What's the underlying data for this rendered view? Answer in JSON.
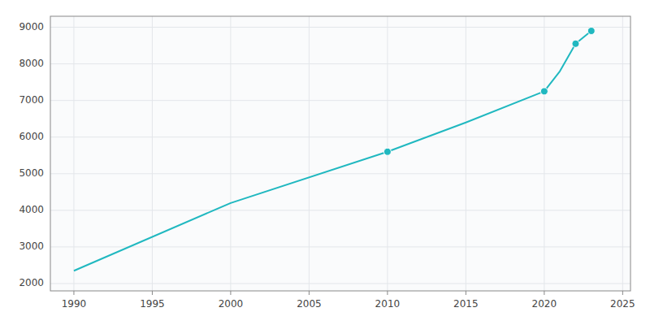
{
  "chart_data": {
    "type": "line",
    "x": [
      1990,
      2000,
      2010,
      2015,
      2020,
      2021,
      2022,
      2023
    ],
    "series": [
      {
        "color": "#20b8c0",
        "values": [
          2350,
          4200,
          5600,
          6400,
          7250,
          7800,
          8550,
          8900
        ]
      },
      {
        "type": "scatter",
        "color": "#20b8c0",
        "marker": "circle",
        "values": [
          null,
          null,
          5600,
          null,
          7250,
          null,
          8550,
          8900
        ]
      }
    ],
    "xlim": [
      1988.5,
      2025.5
    ],
    "ylim": [
      1800,
      9300
    ],
    "xticks": [
      1990,
      1995,
      2000,
      2005,
      2010,
      2015,
      2020,
      2025
    ],
    "yticks": [
      2000,
      3000,
      4000,
      5000,
      6000,
      7000,
      8000,
      9000
    ],
    "grid": true
  }
}
